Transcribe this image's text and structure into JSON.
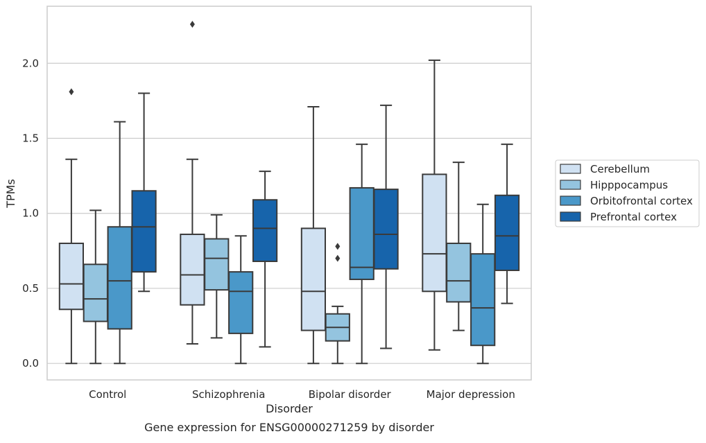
{
  "chart_data": {
    "type": "boxplot",
    "caption": "Gene expression for ENSG00000271259 by disorder",
    "xlabel": "Disorder",
    "ylabel": "TPMs",
    "ylim": [
      -0.11,
      2.38
    ],
    "yticks": [
      0.0,
      0.5,
      1.0,
      1.5,
      2.0
    ],
    "ytick_labels": [
      "0.0",
      "0.5",
      "1.0",
      "1.5",
      "2.0"
    ],
    "grid": "horizontal",
    "legend_position": "right",
    "categories": [
      "Control",
      "Schizophrenia",
      "Bipolar disorder",
      "Major depression"
    ],
    "series": [
      {
        "name": "Cerebellum",
        "color": "#d0e1f2",
        "boxes": [
          {
            "whislo": 0.0,
            "q1": 0.36,
            "med": 0.53,
            "q3": 0.8,
            "whishi": 1.36,
            "fliers": [
              1.81
            ]
          },
          {
            "whislo": 0.13,
            "q1": 0.39,
            "med": 0.59,
            "q3": 0.86,
            "whishi": 1.36,
            "fliers": [
              2.26
            ]
          },
          {
            "whislo": 0.0,
            "q1": 0.22,
            "med": 0.48,
            "q3": 0.9,
            "whishi": 1.71,
            "fliers": []
          },
          {
            "whislo": 0.09,
            "q1": 0.48,
            "med": 0.73,
            "q3": 1.26,
            "whishi": 2.02,
            "fliers": []
          }
        ]
      },
      {
        "name": "Hipppocampus",
        "color": "#94c4df",
        "boxes": [
          {
            "whislo": 0.0,
            "q1": 0.28,
            "med": 0.43,
            "q3": 0.66,
            "whishi": 1.02,
            "fliers": []
          },
          {
            "whislo": 0.17,
            "q1": 0.49,
            "med": 0.7,
            "q3": 0.83,
            "whishi": 0.99,
            "fliers": []
          },
          {
            "whislo": 0.0,
            "q1": 0.15,
            "med": 0.24,
            "q3": 0.33,
            "whishi": 0.38,
            "fliers": [
              0.7,
              0.78
            ]
          },
          {
            "whislo": 0.22,
            "q1": 0.41,
            "med": 0.55,
            "q3": 0.8,
            "whishi": 1.34,
            "fliers": []
          }
        ]
      },
      {
        "name": "Orbitofrontal cortex",
        "color": "#4a98c9",
        "boxes": [
          {
            "whislo": 0.0,
            "q1": 0.23,
            "med": 0.55,
            "q3": 0.91,
            "whishi": 1.61,
            "fliers": []
          },
          {
            "whislo": 0.0,
            "q1": 0.2,
            "med": 0.48,
            "q3": 0.61,
            "whishi": 0.85,
            "fliers": []
          },
          {
            "whislo": 0.0,
            "q1": 0.56,
            "med": 0.64,
            "q3": 1.17,
            "whishi": 1.46,
            "fliers": []
          },
          {
            "whislo": 0.0,
            "q1": 0.12,
            "med": 0.37,
            "q3": 0.73,
            "whishi": 1.06,
            "fliers": []
          }
        ]
      },
      {
        "name": "Prefrontal cortex",
        "color": "#1764ab",
        "boxes": [
          {
            "whislo": 0.48,
            "q1": 0.61,
            "med": 0.91,
            "q3": 1.15,
            "whishi": 1.8,
            "fliers": []
          },
          {
            "whislo": 0.11,
            "q1": 0.68,
            "med": 0.9,
            "q3": 1.09,
            "whishi": 1.28,
            "fliers": []
          },
          {
            "whislo": 0.1,
            "q1": 0.63,
            "med": 0.86,
            "q3": 1.16,
            "whishi": 1.72,
            "fliers": []
          },
          {
            "whislo": 0.4,
            "q1": 0.62,
            "med": 0.85,
            "q3": 1.12,
            "whishi": 1.46,
            "fliers": []
          }
        ]
      }
    ]
  }
}
